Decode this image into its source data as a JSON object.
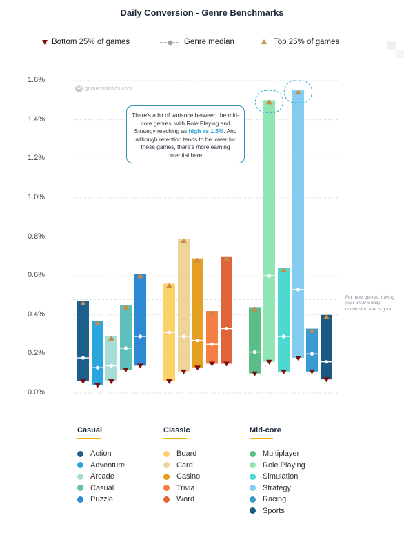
{
  "title": "Daily Conversion - Genre Benchmarks",
  "legend": {
    "bottom": "Bottom 25% of games",
    "median": "Genre median",
    "top": "Top 25% of games"
  },
  "watermark": "gameanalytics.com",
  "callout": {
    "pre": "There's a bit of variance between the mid-core genres, with Role Playing and Strategy reaching as",
    "highlight": "high as 1.5%",
    "post": ". And although retention tends to be lower for these games, there's more earning potential here."
  },
  "threshold_note": "For most genres, having over a 0.5% daily conversion rate is good.",
  "colors": {
    "bottom_marker": "#7a0f0f",
    "top_marker": "#c88a45",
    "median_marker": "#ffffff",
    "threshold_line": "#a8dde0",
    "group_underline": "#f0b400"
  },
  "groups": [
    {
      "name": "Casual",
      "items": [
        {
          "label": "Action",
          "color": "#1e5f8c"
        },
        {
          "label": "Adventure",
          "color": "#2ba5de"
        },
        {
          "label": "Arcade",
          "color": "#a6ddd9"
        },
        {
          "label": "Casual",
          "color": "#5fbfba"
        },
        {
          "label": "Puzzle",
          "color": "#2d89d3"
        }
      ]
    },
    {
      "name": "Classic",
      "items": [
        {
          "label": "Board",
          "color": "#fbd16a"
        },
        {
          "label": "Card",
          "color": "#efd49a"
        },
        {
          "label": "Casino",
          "color": "#e5a024"
        },
        {
          "label": "Trivia",
          "color": "#f47f44"
        },
        {
          "label": "Word",
          "color": "#e0643a"
        }
      ]
    },
    {
      "name": "Mid-core",
      "items": [
        {
          "label": "Multiplayer",
          "color": "#5bbd8a"
        },
        {
          "label": "Role Playing",
          "color": "#8fe5b3"
        },
        {
          "label": "Simulation",
          "color": "#4fd8d2"
        },
        {
          "label": "Strategy",
          "color": "#85cdf0"
        },
        {
          "label": "Racing",
          "color": "#3a9bd0"
        },
        {
          "label": "Sports",
          "color": "#195a80"
        }
      ]
    }
  ],
  "chart_data": {
    "type": "bar",
    "title": "Daily Conversion - Genre Benchmarks",
    "y_tick_labels": [
      "0.0%",
      "0.2%",
      "0.4%",
      "0.6%",
      "0.8%",
      "1.0%",
      "1.2%",
      "1.4%",
      "1.6%"
    ],
    "ylim": [
      0,
      1.6
    ],
    "y_unit": "%",
    "grid": true,
    "legend_position": "top",
    "threshold": 0.48,
    "categories": [
      "Action",
      "Adventure",
      "Arcade",
      "Casual",
      "Puzzle",
      "Board",
      "Card",
      "Casino",
      "Trivia",
      "Word",
      "Multiplayer",
      "Role Playing",
      "Simulation",
      "Strategy",
      "Racing",
      "Sports"
    ],
    "series": [
      {
        "name": "Bottom 25% of games",
        "values": [
          0.06,
          0.04,
          0.06,
          0.12,
          0.14,
          0.06,
          0.11,
          0.13,
          0.15,
          0.15,
          0.1,
          0.16,
          0.11,
          0.18,
          0.11,
          0.07
        ]
      },
      {
        "name": "Genre median",
        "values": [
          0.18,
          0.13,
          0.14,
          0.23,
          0.29,
          0.31,
          0.29,
          0.27,
          0.25,
          0.33,
          0.21,
          0.6,
          0.29,
          0.53,
          0.2,
          0.16
        ]
      },
      {
        "name": "Top 25% of games",
        "values": [
          0.47,
          0.37,
          0.29,
          0.45,
          0.61,
          0.56,
          0.79,
          0.69,
          0.42,
          0.7,
          0.44,
          1.5,
          0.64,
          1.55,
          0.33,
          0.4
        ]
      }
    ],
    "highlighted": [
      "Role Playing",
      "Strategy"
    ]
  }
}
